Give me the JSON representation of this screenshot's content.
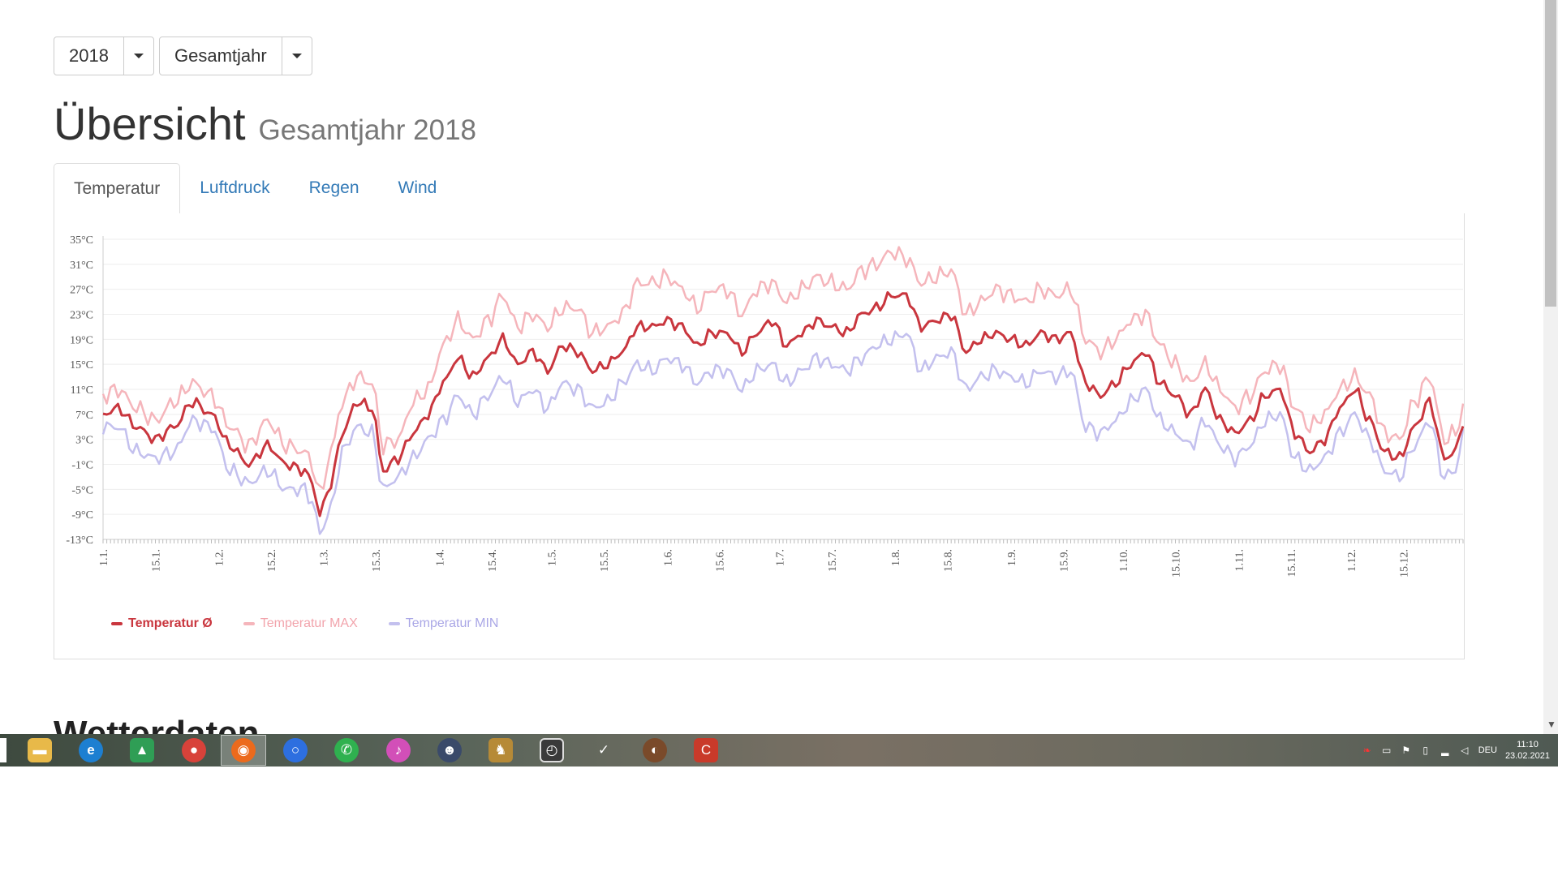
{
  "controls": {
    "year": "2018",
    "period": "Gesamtjahr"
  },
  "header": {
    "title": "Übersicht",
    "subtitle": "Gesamtjahr 2018"
  },
  "tabs": [
    {
      "label": "Temperatur",
      "active": true
    },
    {
      "label": "Luftdruck",
      "active": false
    },
    {
      "label": "Regen",
      "active": false
    },
    {
      "label": "Wind",
      "active": false
    }
  ],
  "next_section_heading": "Wetterdaten",
  "taskbar": {
    "language": "DEU",
    "time": "11:10",
    "date": "23.02.2021",
    "icons": [
      "start-icon",
      "file-explorer-icon",
      "internet-explorer-icon",
      "google-drive-icon",
      "chrome-icon",
      "firefox-icon",
      "signal-icon",
      "whatsapp-icon",
      "itunes-icon",
      "app-icon",
      "game-icon",
      "app-icon",
      "app-icon",
      "app-icon",
      "ccleaner-icon"
    ]
  },
  "colors": {
    "avg": "#c9363e",
    "max": "#f5b5bb",
    "min": "#c3c0ee",
    "link": "#337ab7"
  },
  "chart_data": {
    "type": "line",
    "title": "",
    "xlabel": "",
    "ylabel": "",
    "ylim": [
      -13,
      35
    ],
    "y_ticks": [
      "35°C",
      "31°C",
      "27°C",
      "23°C",
      "19°C",
      "15°C",
      "11°C",
      "7°C",
      "3°C",
      "-1°C",
      "-5°C",
      "-9°C",
      "-13°C"
    ],
    "x_ticks": [
      "1.1.",
      "15.1.",
      "1.2.",
      "15.2.",
      "1.3.",
      "15.3.",
      "1.4.",
      "15.4.",
      "1.5.",
      "15.5.",
      "1.6.",
      "15.6.",
      "1.7.",
      "15.7.",
      "1.8.",
      "15.8.",
      "1.9.",
      "15.9.",
      "1.10.",
      "15.10.",
      "1.11.",
      "15.11.",
      "1.12.",
      "15.12."
    ],
    "x_tick_days": [
      1,
      15,
      32,
      46,
      60,
      74,
      91,
      105,
      121,
      135,
      152,
      166,
      182,
      196,
      213,
      227,
      244,
      258,
      274,
      288,
      305,
      319,
      335,
      349
    ],
    "grid": true,
    "legend_position": "bottom-left",
    "series": [
      {
        "name": "Temperatur Ø",
        "color": "#c9363e",
        "key": "avg",
        "anchors": [
          [
            1,
            7
          ],
          [
            5,
            8
          ],
          [
            10,
            5
          ],
          [
            15,
            3
          ],
          [
            20,
            5
          ],
          [
            25,
            9
          ],
          [
            30,
            7
          ],
          [
            35,
            2
          ],
          [
            40,
            -1
          ],
          [
            45,
            2
          ],
          [
            50,
            -1
          ],
          [
            55,
            -2
          ],
          [
            57,
            -4
          ],
          [
            59,
            -9
          ],
          [
            62,
            -4
          ],
          [
            65,
            4
          ],
          [
            69,
            9
          ],
          [
            73,
            8
          ],
          [
            76,
            -2
          ],
          [
            80,
            0
          ],
          [
            84,
            4
          ],
          [
            88,
            7
          ],
          [
            92,
            12
          ],
          [
            96,
            16
          ],
          [
            100,
            13
          ],
          [
            104,
            16
          ],
          [
            108,
            19
          ],
          [
            112,
            15
          ],
          [
            116,
            17
          ],
          [
            120,
            14
          ],
          [
            124,
            18
          ],
          [
            128,
            17
          ],
          [
            132,
            14
          ],
          [
            136,
            15
          ],
          [
            140,
            17
          ],
          [
            144,
            21
          ],
          [
            148,
            21
          ],
          [
            152,
            22
          ],
          [
            156,
            21
          ],
          [
            160,
            18
          ],
          [
            164,
            20
          ],
          [
            168,
            20
          ],
          [
            172,
            17
          ],
          [
            176,
            20
          ],
          [
            180,
            22
          ],
          [
            184,
            18
          ],
          [
            188,
            20
          ],
          [
            192,
            22
          ],
          [
            196,
            21
          ],
          [
            200,
            20
          ],
          [
            204,
            23
          ],
          [
            208,
            24
          ],
          [
            212,
            26
          ],
          [
            216,
            26
          ],
          [
            220,
            21
          ],
          [
            224,
            22
          ],
          [
            228,
            23
          ],
          [
            232,
            17
          ],
          [
            236,
            19
          ],
          [
            240,
            20
          ],
          [
            244,
            19
          ],
          [
            248,
            18
          ],
          [
            252,
            20
          ],
          [
            256,
            19
          ],
          [
            260,
            20
          ],
          [
            264,
            12
          ],
          [
            268,
            10
          ],
          [
            272,
            12
          ],
          [
            276,
            15
          ],
          [
            280,
            17
          ],
          [
            284,
            12
          ],
          [
            288,
            10
          ],
          [
            292,
            7
          ],
          [
            296,
            11
          ],
          [
            300,
            6
          ],
          [
            304,
            4
          ],
          [
            308,
            6
          ],
          [
            312,
            10
          ],
          [
            316,
            11
          ],
          [
            320,
            4
          ],
          [
            324,
            1
          ],
          [
            328,
            3
          ],
          [
            332,
            8
          ],
          [
            336,
            11
          ],
          [
            340,
            6
          ],
          [
            344,
            1
          ],
          [
            348,
            0
          ],
          [
            352,
            5
          ],
          [
            356,
            9
          ],
          [
            360,
            0
          ],
          [
            363,
            1
          ],
          [
            365,
            6
          ]
        ]
      },
      {
        "name": "Temperatur MAX",
        "color": "#f5b5bb",
        "key": "max",
        "anchors": [
          [
            1,
            10
          ],
          [
            5,
            11
          ],
          [
            10,
            8
          ],
          [
            15,
            6
          ],
          [
            20,
            9
          ],
          [
            25,
            12
          ],
          [
            30,
            10
          ],
          [
            35,
            5
          ],
          [
            40,
            2
          ],
          [
            45,
            6
          ],
          [
            50,
            2
          ],
          [
            55,
            1
          ],
          [
            57,
            -1
          ],
          [
            59,
            -6
          ],
          [
            62,
            1
          ],
          [
            65,
            9
          ],
          [
            69,
            13
          ],
          [
            73,
            12
          ],
          [
            76,
            2
          ],
          [
            80,
            3
          ],
          [
            84,
            9
          ],
          [
            88,
            11
          ],
          [
            92,
            18
          ],
          [
            96,
            22
          ],
          [
            100,
            19
          ],
          [
            104,
            22
          ],
          [
            108,
            26
          ],
          [
            112,
            21
          ],
          [
            116,
            23
          ],
          [
            120,
            21
          ],
          [
            124,
            24
          ],
          [
            128,
            24
          ],
          [
            132,
            20
          ],
          [
            136,
            21
          ],
          [
            140,
            23
          ],
          [
            144,
            28
          ],
          [
            148,
            28
          ],
          [
            152,
            29
          ],
          [
            156,
            27
          ],
          [
            160,
            24
          ],
          [
            164,
            27
          ],
          [
            168,
            27
          ],
          [
            172,
            23
          ],
          [
            176,
            27
          ],
          [
            180,
            28
          ],
          [
            184,
            25
          ],
          [
            188,
            27
          ],
          [
            192,
            29
          ],
          [
            196,
            28
          ],
          [
            200,
            27
          ],
          [
            204,
            30
          ],
          [
            208,
            31
          ],
          [
            212,
            33
          ],
          [
            216,
            32
          ],
          [
            220,
            28
          ],
          [
            224,
            29
          ],
          [
            228,
            30
          ],
          [
            232,
            23
          ],
          [
            236,
            25
          ],
          [
            240,
            27
          ],
          [
            244,
            26
          ],
          [
            248,
            25
          ],
          [
            252,
            27
          ],
          [
            256,
            26
          ],
          [
            260,
            27
          ],
          [
            264,
            19
          ],
          [
            268,
            17
          ],
          [
            272,
            19
          ],
          [
            276,
            22
          ],
          [
            280,
            23
          ],
          [
            284,
            18
          ],
          [
            288,
            15
          ],
          [
            292,
            12
          ],
          [
            296,
            15
          ],
          [
            300,
            11
          ],
          [
            304,
            8
          ],
          [
            308,
            10
          ],
          [
            312,
            14
          ],
          [
            316,
            15
          ],
          [
            320,
            8
          ],
          [
            324,
            5
          ],
          [
            328,
            7
          ],
          [
            332,
            11
          ],
          [
            336,
            13
          ],
          [
            340,
            10
          ],
          [
            344,
            4
          ],
          [
            348,
            3
          ],
          [
            352,
            9
          ],
          [
            356,
            13
          ],
          [
            360,
            3
          ],
          [
            363,
            4
          ],
          [
            365,
            8
          ]
        ]
      },
      {
        "name": "Temperatur MIN",
        "color": "#c3c0ee",
        "key": "min",
        "anchors": [
          [
            1,
            5
          ],
          [
            5,
            5
          ],
          [
            10,
            1
          ],
          [
            15,
            0
          ],
          [
            20,
            1
          ],
          [
            25,
            6
          ],
          [
            30,
            5
          ],
          [
            35,
            -2
          ],
          [
            40,
            -4
          ],
          [
            45,
            -2
          ],
          [
            50,
            -5
          ],
          [
            55,
            -5
          ],
          [
            57,
            -7
          ],
          [
            59,
            -12
          ],
          [
            62,
            -8
          ],
          [
            65,
            1
          ],
          [
            69,
            5
          ],
          [
            73,
            4
          ],
          [
            76,
            -5
          ],
          [
            80,
            -3
          ],
          [
            84,
            0
          ],
          [
            88,
            3
          ],
          [
            92,
            6
          ],
          [
            96,
            10
          ],
          [
            100,
            7
          ],
          [
            104,
            10
          ],
          [
            108,
            13
          ],
          [
            112,
            9
          ],
          [
            116,
            11
          ],
          [
            120,
            8
          ],
          [
            124,
            12
          ],
          [
            128,
            11
          ],
          [
            132,
            8
          ],
          [
            136,
            9
          ],
          [
            140,
            12
          ],
          [
            144,
            15
          ],
          [
            148,
            14
          ],
          [
            152,
            16
          ],
          [
            156,
            15
          ],
          [
            160,
            12
          ],
          [
            164,
            14
          ],
          [
            168,
            14
          ],
          [
            172,
            11
          ],
          [
            176,
            14
          ],
          [
            180,
            15
          ],
          [
            184,
            12
          ],
          [
            188,
            14
          ],
          [
            192,
            16
          ],
          [
            196,
            15
          ],
          [
            200,
            14
          ],
          [
            204,
            16
          ],
          [
            208,
            18
          ],
          [
            212,
            19
          ],
          [
            216,
            20
          ],
          [
            220,
            14
          ],
          [
            224,
            16
          ],
          [
            228,
            17
          ],
          [
            232,
            11
          ],
          [
            236,
            13
          ],
          [
            240,
            14
          ],
          [
            244,
            13
          ],
          [
            248,
            12
          ],
          [
            252,
            14
          ],
          [
            256,
            13
          ],
          [
            260,
            14
          ],
          [
            264,
            5
          ],
          [
            268,
            4
          ],
          [
            272,
            6
          ],
          [
            276,
            9
          ],
          [
            280,
            11
          ],
          [
            284,
            6
          ],
          [
            288,
            4
          ],
          [
            292,
            2
          ],
          [
            296,
            6
          ],
          [
            300,
            2
          ],
          [
            304,
            0
          ],
          [
            308,
            2
          ],
          [
            312,
            6
          ],
          [
            316,
            7
          ],
          [
            320,
            0
          ],
          [
            324,
            -2
          ],
          [
            328,
            0
          ],
          [
            332,
            4
          ],
          [
            336,
            7
          ],
          [
            340,
            3
          ],
          [
            344,
            -2
          ],
          [
            348,
            -3
          ],
          [
            352,
            2
          ],
          [
            356,
            6
          ],
          [
            360,
            -3
          ],
          [
            363,
            -2
          ],
          [
            365,
            4
          ]
        ]
      }
    ]
  }
}
